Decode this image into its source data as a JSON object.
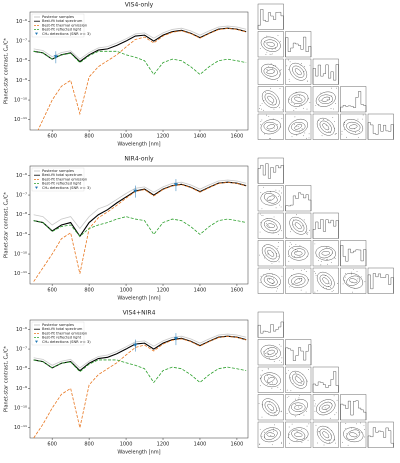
{
  "chart_data": [
    {
      "type": "line",
      "title": "VIS4-only",
      "x_label": "Wavelength [nm]",
      "y_label": "Planet-star contrast, Cₚ/C*",
      "log_y": true,
      "legend": "upper left",
      "x": [
        500,
        550,
        600,
        650,
        700,
        750,
        800,
        850,
        900,
        950,
        1000,
        1050,
        1100,
        1150,
        1200,
        1250,
        1300,
        1350,
        1400,
        1450,
        1500,
        1550,
        1600,
        1650
      ],
      "xlim": [
        480,
        1660
      ],
      "xticks": [
        600,
        800,
        1000,
        1200,
        1400,
        1600
      ],
      "ylim": [
        3e-12,
        3e-06
      ],
      "yticks": [
        {
          "value": 1e-06,
          "label": "10⁻⁶"
        },
        {
          "value": 1e-07,
          "label": "10⁻⁷"
        },
        {
          "value": 1e-08,
          "label": "10⁻⁸"
        },
        {
          "value": 1e-09,
          "label": "10⁻⁹"
        },
        {
          "value": 1e-10,
          "label": "10⁻¹⁰"
        },
        {
          "value": 1e-11,
          "label": "10⁻¹¹"
        }
      ],
      "series": [
        {
          "name": "Posterior samples",
          "color": "#bbbbbb",
          "dash": false,
          "values": [
            4e-08,
            3.3e-08,
            1.6e-08,
            2.6e-08,
            3.2e-08,
            1.2e-08,
            2.6e-08,
            4.5e-08,
            5.2e-08,
            8e-08,
            1.3e-07,
            2.3e-07,
            2.6e-07,
            1.4e-07,
            2.6e-07,
            3.9e-07,
            4.5e-07,
            3.3e-07,
            2e-07,
            3.3e-07,
            5.2e-07,
            5.8e-07,
            5.2e-07,
            4e-07
          ]
        },
        {
          "name": "Best-fit total spectrum",
          "color": "#000000",
          "dash": false,
          "values": [
            3e-08,
            2.5e-08,
            1.2e-08,
            2e-08,
            2.5e-08,
            9e-09,
            2e-08,
            3.5e-08,
            4e-08,
            6e-08,
            1e-07,
            1.8e-07,
            2e-07,
            1e-07,
            2e-07,
            3e-07,
            3.5e-07,
            2.5e-07,
            1.5e-07,
            2.5e-07,
            4e-07,
            4.5e-07,
            4e-07,
            3e-07
          ]
        },
        {
          "name": "Best-fit thermal emission",
          "color": "#e8761f",
          "dash": true,
          "values": [
            1e-12,
            1e-11,
            1e-10,
            5e-10,
            1e-09,
            2e-11,
            1.5e-09,
            5e-09,
            1e-08,
            2e-08,
            5e-08,
            1.2e-07,
            1.6e-07,
            8e-08,
            1.8e-07,
            2.8e-07,
            3.3e-07,
            2.4e-07,
            1.4e-07,
            2.4e-07,
            3.8e-07,
            4.4e-07,
            3.9e-07,
            2.9e-07
          ]
        },
        {
          "name": "Best-fit reflected light",
          "color": "#2ca02c",
          "dash": true,
          "values": [
            3e-08,
            2.5e-08,
            1.2e-08,
            2e-08,
            2.4e-08,
            8e-09,
            1.8e-08,
            3e-08,
            3e-08,
            3e-08,
            2e-08,
            1.5e-08,
            1e-08,
            2e-09,
            8e-09,
            1.2e-08,
            1e-08,
            5e-09,
            2e-09,
            5e-09,
            1e-08,
            1.2e-08,
            1e-08,
            8e-09
          ]
        },
        {
          "name": "CH₄ detections (SNR >= 3)",
          "color": "#1f77b4",
          "scatter": true,
          "x": [
            620
          ],
          "values": [
            1.5e-08
          ]
        }
      ]
    },
    {
      "type": "line",
      "title": "NIR4-only",
      "x_label": "Wavelength [nm]",
      "y_label": "Planet-star contrast, Cₚ/C*",
      "log_y": true,
      "legend": "upper left",
      "x": [
        500,
        550,
        600,
        650,
        700,
        750,
        800,
        850,
        900,
        950,
        1000,
        1050,
        1100,
        1150,
        1200,
        1250,
        1300,
        1350,
        1400,
        1450,
        1500,
        1550,
        1600,
        1650
      ],
      "xlim": [
        480,
        1660
      ],
      "xticks": [
        600,
        800,
        1000,
        1200,
        1400,
        1600
      ],
      "ylim": [
        3e-12,
        3e-06
      ],
      "yticks": [
        {
          "value": 1e-06,
          "label": "10⁻⁶"
        },
        {
          "value": 1e-07,
          "label": "10⁻⁷"
        },
        {
          "value": 1e-08,
          "label": "10⁻⁸"
        },
        {
          "value": 1e-09,
          "label": "10⁻⁹"
        },
        {
          "value": 1e-10,
          "label": "10⁻¹⁰"
        },
        {
          "value": 1e-11,
          "label": "10⁻¹¹"
        }
      ],
      "series": [
        {
          "name": "Posterior samples",
          "color": "#bbbbbb",
          "dash": false,
          "values": [
            1e-08,
            8e-09,
            3e-09,
            6e-09,
            8e-09,
            2e-09,
            8e-09,
            2e-08,
            3e-08,
            6e-08,
            1.2e-07,
            2.2e-07,
            2.6e-07,
            1.4e-07,
            2.6e-07,
            3.9e-07,
            4.5e-07,
            3.3e-07,
            2e-07,
            3.3e-07,
            5.2e-07,
            5.8e-07,
            5.2e-07,
            4e-07
          ]
        },
        {
          "name": "Best-fit total spectrum",
          "color": "#000000",
          "dash": false,
          "values": [
            5e-09,
            4e-09,
            1.5e-09,
            3e-09,
            4e-09,
            8e-10,
            4e-09,
            1e-08,
            1.8e-08,
            4e-08,
            8e-08,
            1.6e-07,
            2e-07,
            1e-07,
            2e-07,
            3e-07,
            3.5e-07,
            2.5e-07,
            1.5e-07,
            2.5e-07,
            4e-07,
            4.5e-07,
            4e-07,
            3e-07
          ]
        },
        {
          "name": "Best-fit thermal emission",
          "color": "#e8761f",
          "dash": true,
          "values": [
            4e-12,
            2e-11,
            1e-10,
            6e-10,
            1.2e-09,
            1e-11,
            2e-09,
            7e-09,
            1.4e-08,
            3e-08,
            7e-08,
            1.5e-07,
            1.9e-07,
            9e-08,
            1.9e-07,
            2.9e-07,
            3.4e-07,
            2.4e-07,
            1.4e-07,
            2.4e-07,
            3.9e-07,
            4.4e-07,
            3.9e-07,
            2.9e-07
          ]
        },
        {
          "name": "Best-fit reflected light",
          "color": "#2ca02c",
          "dash": true,
          "values": [
            5e-09,
            4e-09,
            1.4e-09,
            2.5e-09,
            3e-09,
            8e-10,
            2e-09,
            3e-09,
            4e-09,
            6e-09,
            8e-09,
            6e-09,
            5e-09,
            1e-09,
            4e-09,
            6e-09,
            5e-09,
            2.5e-09,
            1e-09,
            2.5e-09,
            5e-09,
            6e-09,
            5e-09,
            4e-09
          ]
        },
        {
          "name": "CH₄ detections (SNR >= 3)",
          "color": "#1f77b4",
          "scatter": true,
          "x": [
            1050,
            1270
          ],
          "values": [
            1.5e-07,
            3.2e-07
          ]
        }
      ]
    },
    {
      "type": "line",
      "title": "VIS4+NIR4",
      "x_label": "Wavelength [nm]",
      "y_label": "Planet-star contrast, Cₚ/C*",
      "log_y": true,
      "legend": "upper left",
      "x": [
        500,
        550,
        600,
        650,
        700,
        750,
        800,
        850,
        900,
        950,
        1000,
        1050,
        1100,
        1150,
        1200,
        1250,
        1300,
        1350,
        1400,
        1450,
        1500,
        1550,
        1600,
        1650
      ],
      "xlim": [
        480,
        1660
      ],
      "xticks": [
        600,
        800,
        1000,
        1200,
        1400,
        1600
      ],
      "ylim": [
        3e-12,
        3e-06
      ],
      "yticks": [
        {
          "value": 1e-06,
          "label": "10⁻⁶"
        },
        {
          "value": 1e-07,
          "label": "10⁻⁷"
        },
        {
          "value": 1e-08,
          "label": "10⁻⁸"
        },
        {
          "value": 1e-09,
          "label": "10⁻⁹"
        },
        {
          "value": 1e-10,
          "label": "10⁻¹⁰"
        },
        {
          "value": 1e-11,
          "label": "10⁻¹¹"
        }
      ],
      "series": [
        {
          "name": "Posterior samples",
          "color": "#bbbbbb",
          "dash": false,
          "values": [
            3.6e-08,
            3e-08,
            1.5e-08,
            2.4e-08,
            3e-08,
            1.1e-08,
            2.4e-08,
            4.2e-08,
            5e-08,
            7.5e-08,
            1.3e-07,
            2.3e-07,
            2.6e-07,
            1.4e-07,
            2.6e-07,
            3.9e-07,
            4.5e-07,
            3.3e-07,
            2e-07,
            3.3e-07,
            5.2e-07,
            5.8e-07,
            5.2e-07,
            4e-07
          ]
        },
        {
          "name": "Best-fit total spectrum",
          "color": "#000000",
          "dash": false,
          "values": [
            2.8e-08,
            2.3e-08,
            1.1e-08,
            1.9e-08,
            2.3e-08,
            8e-09,
            1.9e-08,
            3.3e-08,
            3.8e-08,
            5.8e-08,
            1e-07,
            1.8e-07,
            2e-07,
            1e-07,
            2e-07,
            3e-07,
            3.5e-07,
            2.5e-07,
            1.5e-07,
            2.5e-07,
            4e-07,
            4.5e-07,
            4e-07,
            3e-07
          ]
        },
        {
          "name": "Best-fit thermal emission",
          "color": "#e8761f",
          "dash": true,
          "values": [
            3e-12,
            1.5e-11,
            1e-10,
            5e-10,
            1e-09,
            1e-11,
            1.5e-09,
            5e-09,
            1e-08,
            2e-08,
            5e-08,
            1.2e-07,
            1.6e-07,
            8e-08,
            1.8e-07,
            2.8e-07,
            3.3e-07,
            2.4e-07,
            1.4e-07,
            2.4e-07,
            3.8e-07,
            4.4e-07,
            3.9e-07,
            2.9e-07
          ]
        },
        {
          "name": "Best-fit reflected light",
          "color": "#2ca02c",
          "dash": true,
          "values": [
            2.8e-08,
            2.3e-08,
            1.1e-08,
            1.9e-08,
            2.2e-08,
            7e-09,
            1.7e-08,
            2.8e-08,
            2.8e-08,
            2.8e-08,
            2e-08,
            1.5e-08,
            1e-08,
            2e-09,
            8e-09,
            1.2e-08,
            1e-08,
            5e-09,
            2e-09,
            5e-09,
            1e-08,
            1.2e-08,
            1e-08,
            8e-09
          ]
        },
        {
          "name": "CH₄ detections (SNR >= 3)",
          "color": "#1f77b4",
          "scatter": true,
          "x": [
            1050,
            1270
          ],
          "values": [
            1.5e-07,
            3.2e-07
          ]
        }
      ]
    }
  ]
}
